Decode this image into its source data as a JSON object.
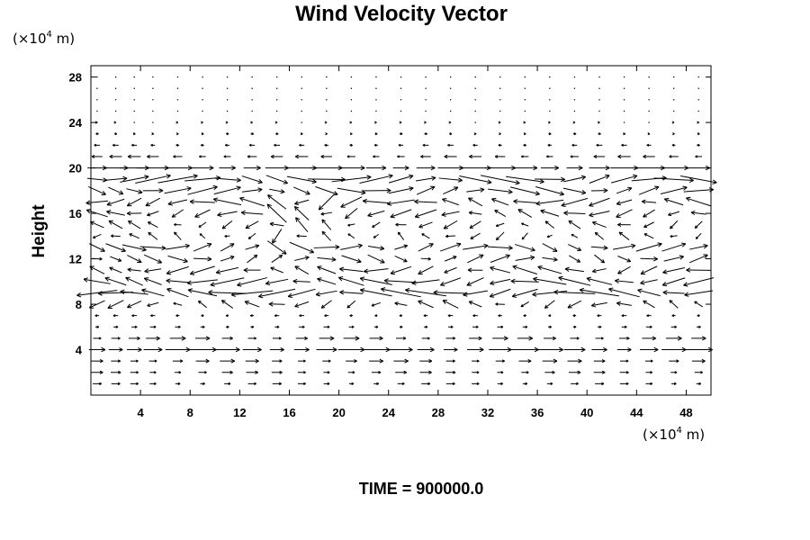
{
  "chart_data": {
    "type": "vector-field",
    "title": "Wind Velocity Vector",
    "ylabel": "Height",
    "xlabel": "",
    "unit_prefix": "(×10",
    "unit_exponent": "4",
    "unit_suffix": " m)",
    "xlim": [
      0,
      50
    ],
    "ylim": [
      0,
      29
    ],
    "xticks": [
      4,
      8,
      12,
      16,
      20,
      24,
      28,
      32,
      36,
      40,
      44,
      48
    ],
    "yticks": [
      4,
      8,
      12,
      16,
      20,
      24,
      28
    ],
    "xtick_labels": [
      "4",
      "8",
      "12",
      "16",
      "20",
      "24",
      "28",
      "32",
      "36",
      "40",
      "44",
      "48"
    ],
    "ytick_labels": [
      "4",
      "8",
      "12",
      "16",
      "20",
      "24",
      "28"
    ],
    "grid": false,
    "arrow_color": "#000000",
    "vectors": [
      {
        "y": 1,
        "u": 0.9
      },
      {
        "y": 2,
        "u": 1.2
      },
      {
        "y": 3,
        "u": 1.5
      },
      {
        "y": 4,
        "u": 2.8
      },
      {
        "y": 5,
        "u": 1.6
      },
      {
        "y": 6,
        "u": 0.6
      },
      {
        "y": 7,
        "u": -0.5
      },
      {
        "y": 8,
        "u": -1.6
      },
      {
        "y": 9,
        "u": -4.2
      },
      {
        "y": 10,
        "u": -3.4
      },
      {
        "y": 11,
        "u": -2.5
      },
      {
        "y": 12,
        "u": 2.0
      },
      {
        "y": 13,
        "u": 2.6
      },
      {
        "y": 14,
        "u": -1.0
      },
      {
        "y": 15,
        "u": -1.4
      },
      {
        "y": 16,
        "u": -2.2
      },
      {
        "y": 17,
        "u": -2.8
      },
      {
        "y": 18,
        "u": 3.0
      },
      {
        "y": 19,
        "u": 4.0
      },
      {
        "y": 20,
        "u": 3.2
      },
      {
        "y": 21,
        "u": -1.3
      },
      {
        "y": 22,
        "u": -0.6
      },
      {
        "y": 23,
        "u": 0.3
      },
      {
        "y": 24,
        "u": 0.1
      },
      {
        "y": 25,
        "u": 0.05
      },
      {
        "y": 26,
        "u": 0.0
      },
      {
        "y": 27,
        "u": 0.0
      },
      {
        "y": 28,
        "u": 0.0
      }
    ],
    "arrow_x_positions": [
      0.5,
      2,
      3.5,
      5,
      7,
      9,
      11,
      13,
      15,
      17,
      19,
      21,
      23,
      25,
      27,
      29,
      31,
      33,
      35,
      37,
      39,
      41,
      43,
      45,
      47,
      49
    ]
  },
  "footer": {
    "time_label": "TIME = 900000.0"
  }
}
